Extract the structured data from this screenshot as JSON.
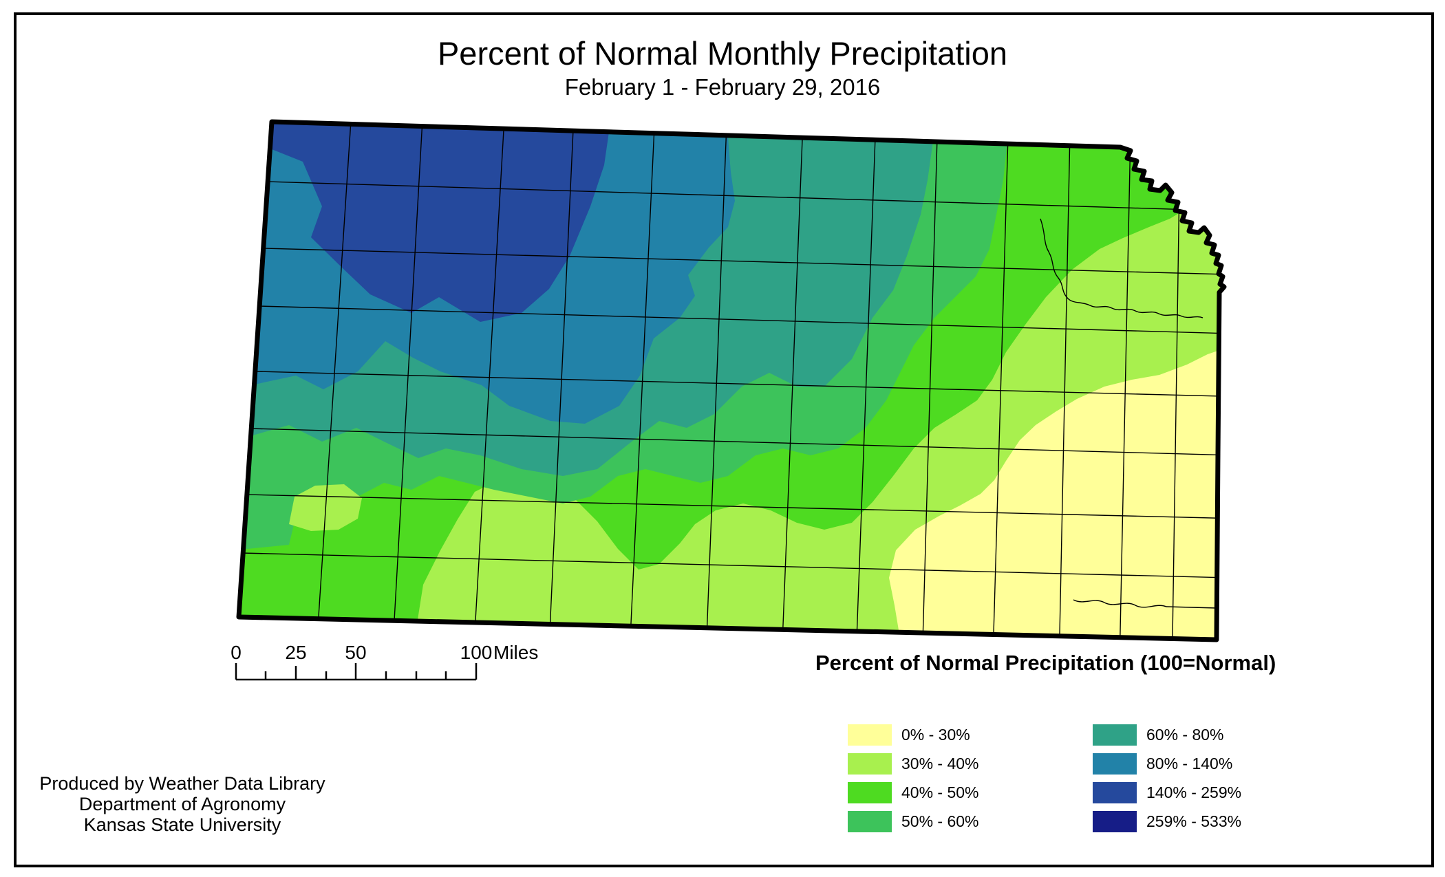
{
  "title": "Percent of Normal Monthly Precipitation",
  "subtitle": "February 1 - February 29, 2016",
  "legend": {
    "title": "Percent of Normal Precipitation (100=Normal)",
    "items": [
      {
        "label": "0% - 30%",
        "color": "#FFFF99"
      },
      {
        "label": "30% - 40%",
        "color": "#A8F04E"
      },
      {
        "label": "40% - 50%",
        "color": "#4EDB21"
      },
      {
        "label": "50% - 60%",
        "color": "#3DC35B"
      },
      {
        "label": "60% - 80%",
        "color": "#2FA287"
      },
      {
        "label": "80% - 140%",
        "color": "#2282A8"
      },
      {
        "label": "140% - 259%",
        "color": "#25499D"
      },
      {
        "label": "259% - 533%",
        "color": "#161D87"
      }
    ]
  },
  "scalebar": {
    "tick_labels": [
      "0",
      "25",
      "50",
      "100"
    ],
    "unit": "Miles"
  },
  "credits": {
    "line1": "Produced by Weather Data Library",
    "line2": "Department of Agronomy",
    "line3": "Kansas State University"
  },
  "map": {
    "region": "Kansas",
    "border_color": "#000000"
  }
}
